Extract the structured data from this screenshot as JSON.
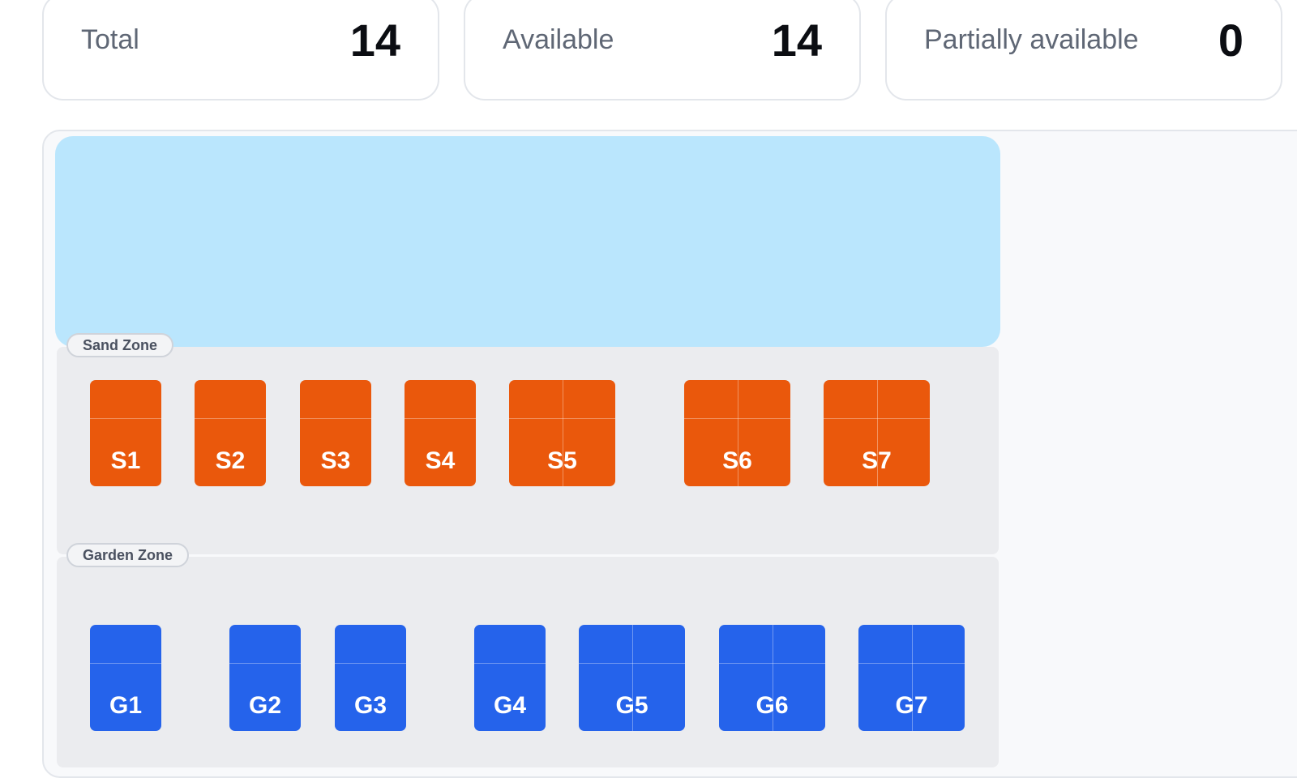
{
  "stats": [
    {
      "label": "Total",
      "value": "14"
    },
    {
      "label": "Available",
      "value": "14"
    },
    {
      "label": "Partially available",
      "value": "0"
    }
  ],
  "zones": {
    "sand": {
      "label": "Sand Zone",
      "color": "#ea580c"
    },
    "garden": {
      "label": "Garden Zone",
      "color": "#2563eb"
    }
  },
  "spots": {
    "sand": [
      "S1",
      "S2",
      "S3",
      "S4",
      "S5",
      "S6",
      "S7"
    ],
    "garden": [
      "G1",
      "G2",
      "G3",
      "G4",
      "G5",
      "G6",
      "G7"
    ]
  },
  "colors": {
    "water": "#bae6fd",
    "zone_background": "#ebecef"
  }
}
